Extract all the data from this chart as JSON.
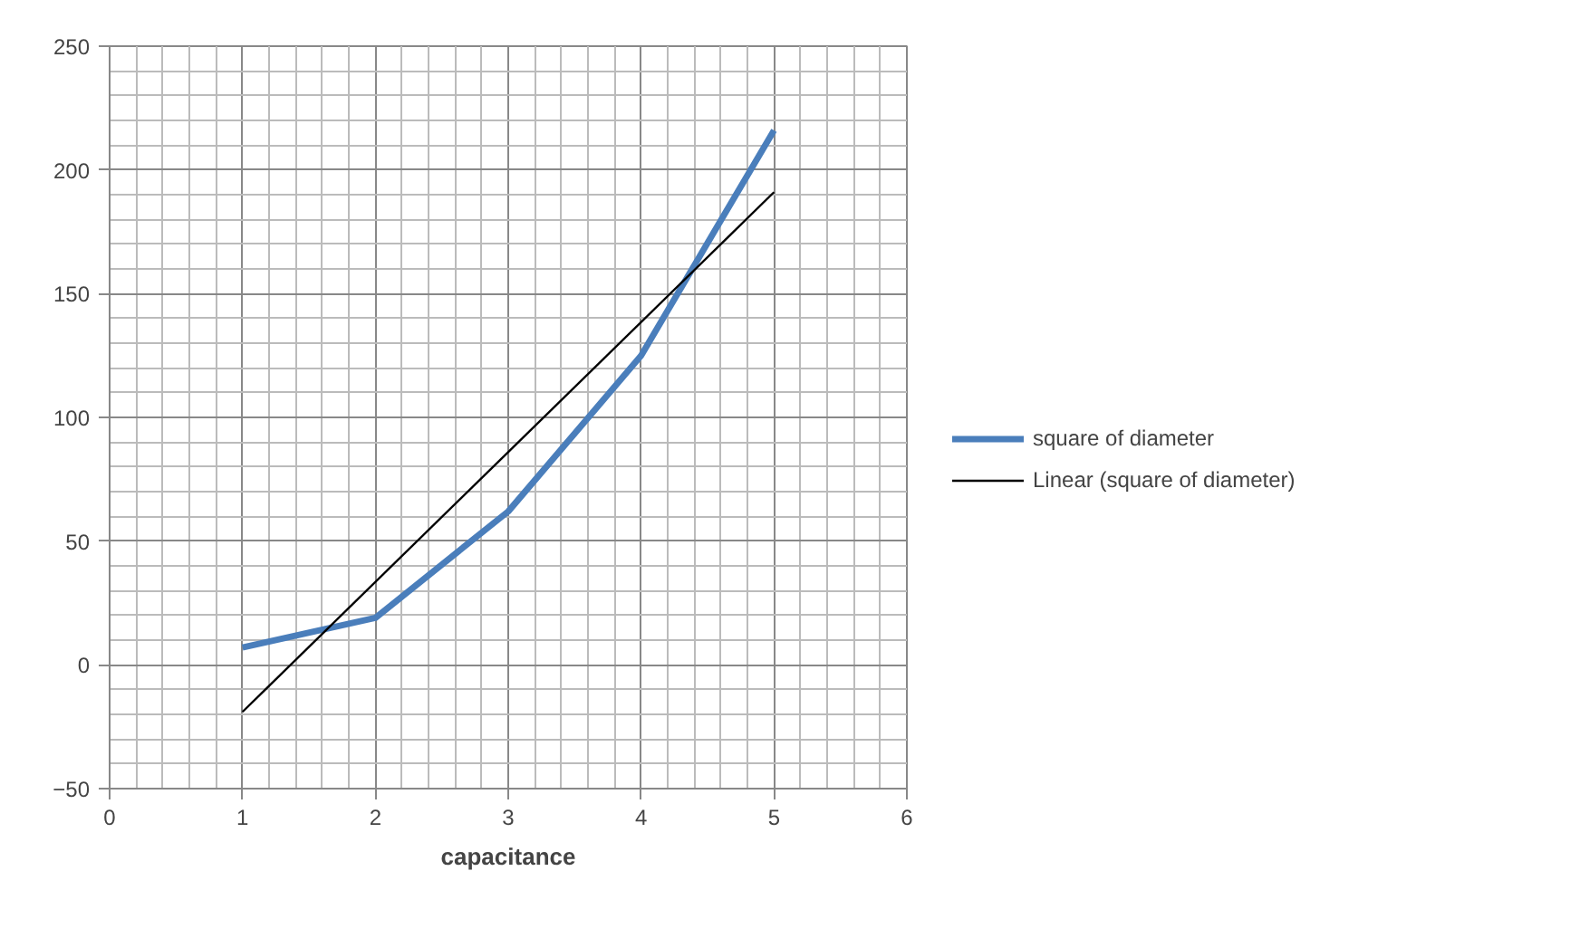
{
  "chart_data": {
    "type": "line",
    "xlabel": "capacitance",
    "x": [
      1,
      2,
      3,
      4,
      5
    ],
    "xlim": [
      0,
      6
    ],
    "xticks": [
      0,
      1,
      2,
      3,
      4,
      5,
      6
    ],
    "ylim": [
      -50,
      250
    ],
    "yticks": [
      -50,
      0,
      50,
      100,
      150,
      200,
      250
    ],
    "grid": true,
    "legend": "right",
    "marker": "none",
    "series": [
      {
        "name": "square of diameter",
        "color": "#4a7ebb",
        "values": [
          7,
          19,
          62,
          125,
          216
        ]
      },
      {
        "name": "Linear (square of diameter)",
        "color": "#000000",
        "x": [
          1,
          5
        ],
        "values": [
          -19,
          191
        ]
      }
    ]
  }
}
